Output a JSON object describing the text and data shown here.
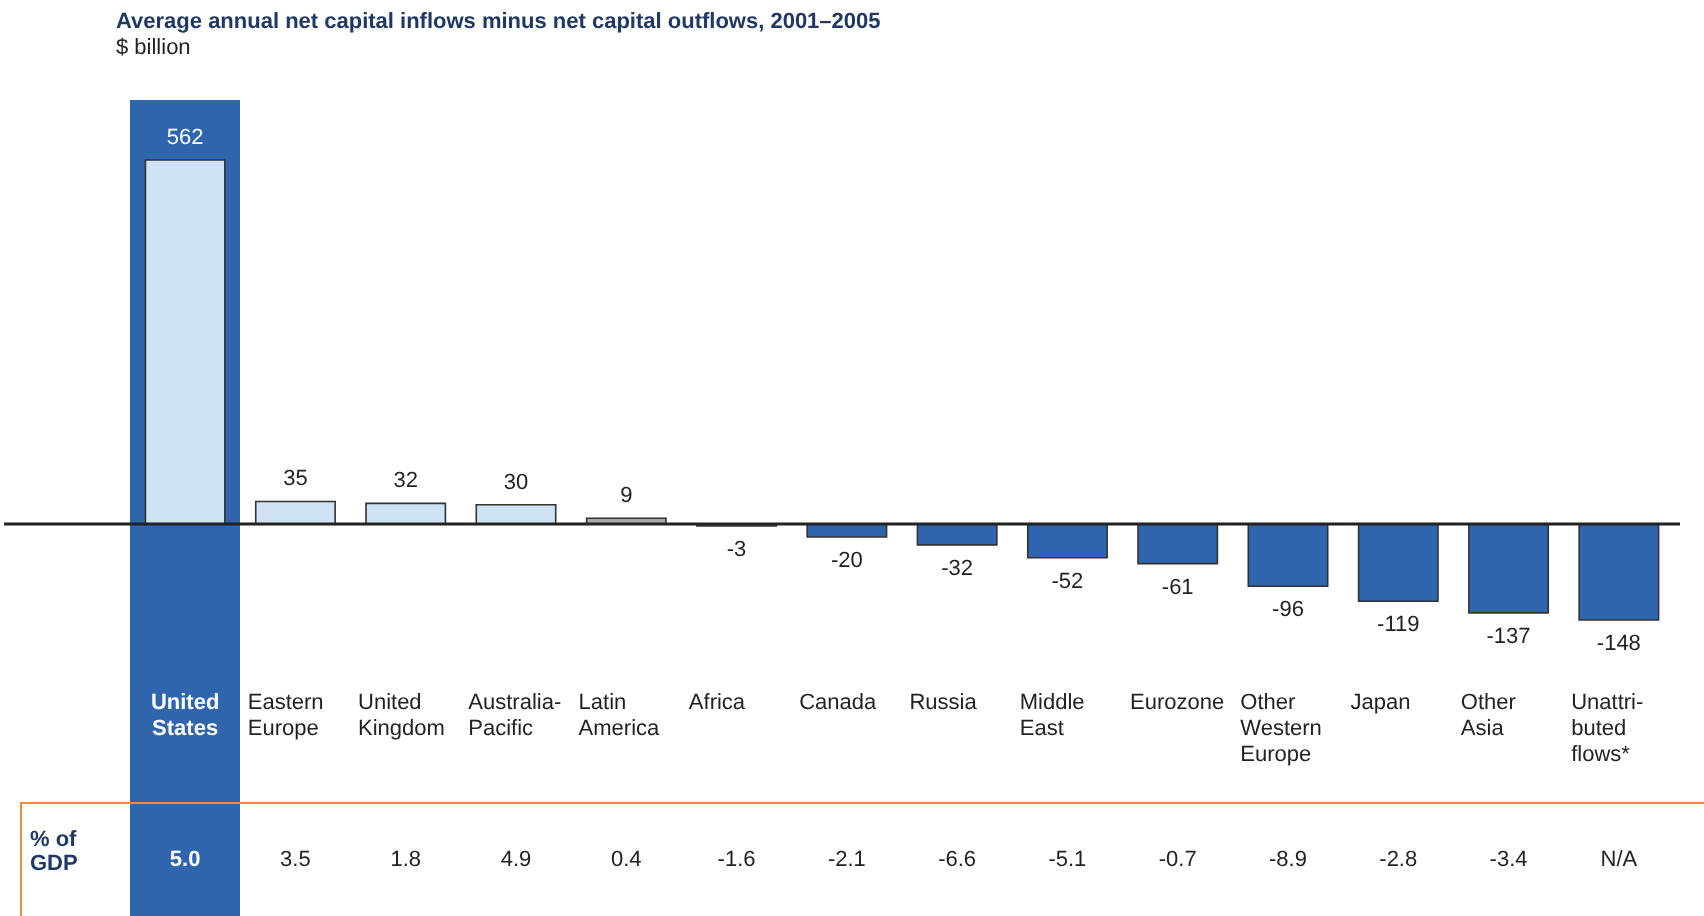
{
  "chart_data": {
    "type": "bar",
    "title": "Average annual net capital inflows minus net capital outflows, 2001–2005",
    "subtitle": "$ billion",
    "categories": [
      "United States",
      "Eastern Europe",
      "United Kingdom",
      "Australia-Pacific",
      "Latin America",
      "Africa",
      "Canada",
      "Russia",
      "Middle East",
      "Eurozone",
      "Other Western Europe",
      "Japan",
      "Other Asia",
      "Unattri-buted flows*"
    ],
    "values": [
      562,
      35,
      32,
      30,
      9,
      -3,
      -20,
      -32,
      -52,
      -61,
      -96,
      -119,
      -137,
      -148
    ],
    "colors": [
      "#cfe3f5",
      "#cfe3f5",
      "#cfe3f5",
      "#cfe3f5",
      "#a8a8a8",
      "#2e65ad",
      "#2e65ad",
      "#2e65ad",
      "#2e65ad",
      "#2e65ad",
      "#2e65ad",
      "#2e65ad",
      "#2e65ad",
      "#2e65ad"
    ],
    "data_labels": true,
    "annotations": [
      "% of GDP",
      "5.0",
      "3.5",
      "1.8",
      "4.9",
      "0.4",
      "-1.6",
      "-2.1",
      "-6.6",
      "-5.1",
      "-0.7",
      "-8.9",
      "-2.8",
      "-3.4",
      "N/A"
    ]
  }
}
